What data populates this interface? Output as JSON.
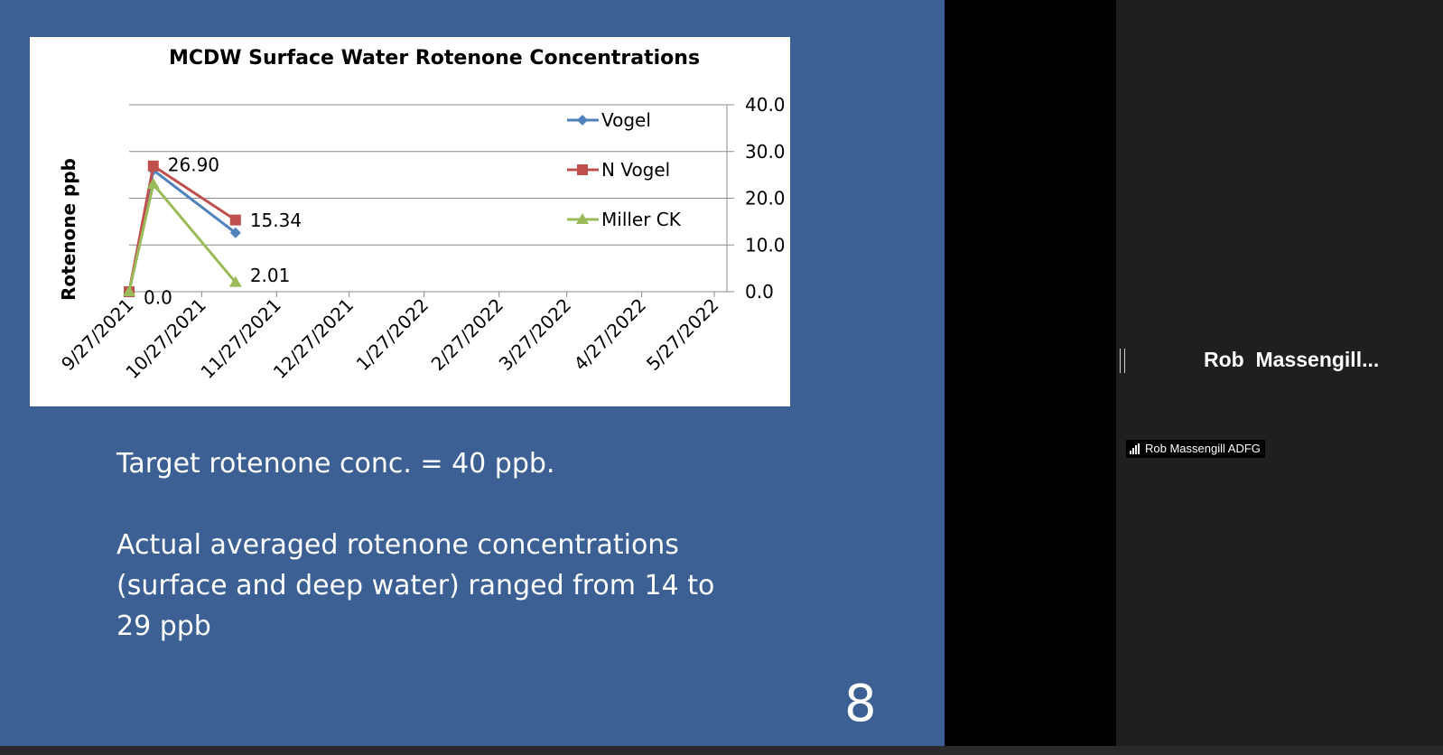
{
  "slide": {
    "target_text": "Target rotenone conc. = 40 ppb.",
    "actual_text": "Actual averaged rotenone concentrations (surface and deep water) ranged from 14 to 29 ppb",
    "page_number": "8"
  },
  "participant": {
    "display_name": "Rob  Massengill...",
    "name_tag": "Rob Massengill ADFG"
  },
  "colors": {
    "slide_bg": "#3c6094",
    "vogel": "#4f81bd",
    "n_vogel": "#c0504d",
    "miller_ck": "#9bbb59"
  },
  "chart_data": {
    "type": "line",
    "title": "MCDW Surface Water Rotenone Concentrations",
    "ylabel": "Rotenone ppb",
    "xlabel": "",
    "x_ticks": [
      "9/27/2021",
      "10/27/2021",
      "11/27/2021",
      "12/27/2021",
      "1/27/2022",
      "2/27/2022",
      "3/27/2022",
      "4/27/2022",
      "5/27/2022"
    ],
    "y_ticks": [
      "0.0",
      "10.0",
      "20.0",
      "30.0",
      "40.0"
    ],
    "ylim": [
      0,
      40
    ],
    "x_range": [
      "2021-09-27",
      "2022-05-27"
    ],
    "grid": true,
    "y_axis_side": "right",
    "legend_position": "top-right",
    "series": [
      {
        "name": "Vogel",
        "marker": "diamond",
        "color": "#4f81bd",
        "points": [
          {
            "x": "2021-09-27",
            "y": 0
          },
          {
            "x": "2021-10-07",
            "y": 26.0
          },
          {
            "x": "2021-11-10",
            "y": 12.6
          }
        ]
      },
      {
        "name": "N Vogel",
        "marker": "square",
        "color": "#c0504d",
        "points": [
          {
            "x": "2021-09-27",
            "y": 0
          },
          {
            "x": "2021-10-07",
            "y": 26.9
          },
          {
            "x": "2021-11-10",
            "y": 15.34
          }
        ]
      },
      {
        "name": "Miller CK",
        "marker": "triangle",
        "color": "#9bbb59",
        "points": [
          {
            "x": "2021-09-27",
            "y": 0
          },
          {
            "x": "2021-10-07",
            "y": 23.0
          },
          {
            "x": "2021-11-10",
            "y": 2.01
          }
        ]
      }
    ],
    "data_labels": [
      {
        "text": "26.90",
        "series": "N Vogel",
        "point": 1
      },
      {
        "text": "15.34",
        "series": "N Vogel",
        "point": 2
      },
      {
        "text": "0.0",
        "series": "Miller CK",
        "point": 0
      },
      {
        "text": "2.01",
        "series": "Miller CK",
        "point": 2
      }
    ]
  }
}
